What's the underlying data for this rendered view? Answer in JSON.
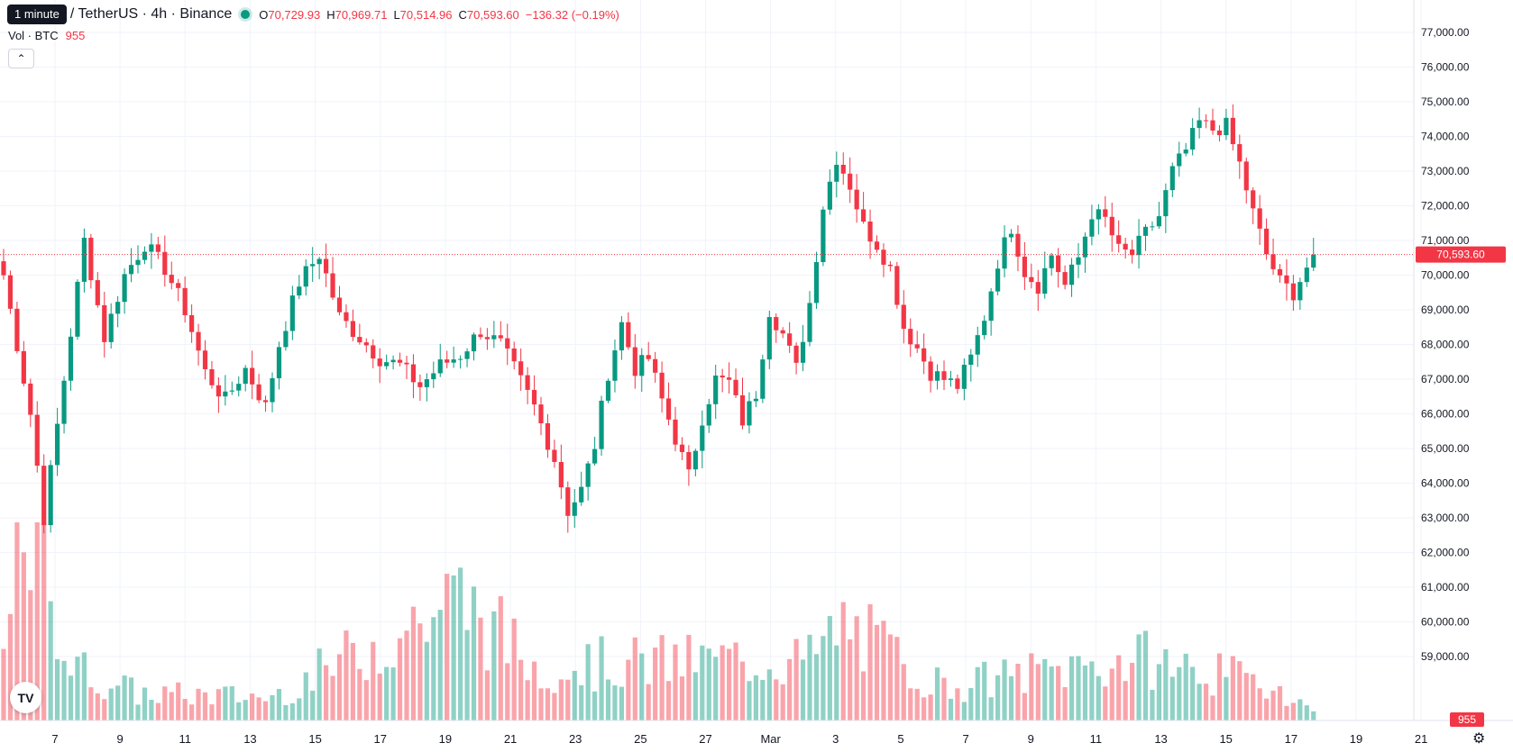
{
  "legend": {
    "interval_tooltip": "1 minute",
    "symbol": "/ TetherUS · 4h · Binance",
    "o_key": "O",
    "o_val": "70,729.93",
    "h_key": "H",
    "h_val": "70,969.71",
    "l_key": "L",
    "l_val": "70,514.96",
    "c_key": "C",
    "c_val": "70,593.60",
    "change": "−136.32 (−0.19%)"
  },
  "volume": {
    "label": "Vol · BTC",
    "value": "955"
  },
  "price_axis": {
    "ticks": [
      "77,000.00",
      "76,000.00",
      "75,000.00",
      "74,000.00",
      "73,000.00",
      "72,000.00",
      "71,000.00",
      "70,000.00",
      "69,000.00",
      "68,000.00",
      "67,000.00",
      "66,000.00",
      "65,000.00",
      "64,000.00",
      "63,000.00",
      "62,000.00",
      "61,000.00",
      "60,000.00",
      "59,000.00"
    ],
    "last_price": "70,593.60",
    "volume_badge": "955"
  },
  "time_axis": [
    "7",
    "9",
    "11",
    "13",
    "15",
    "17",
    "19",
    "21",
    "23",
    "25",
    "27",
    "Mar",
    "3",
    "5",
    "7",
    "9",
    "11",
    "13",
    "15",
    "17",
    "19",
    "21"
  ],
  "colors": {
    "up": "#089981",
    "down": "#f23645",
    "grid": "#f0f3fa",
    "text": "#131722"
  },
  "icons": {
    "collapse": "chevron-up-icon",
    "logo": "tradingview-logo",
    "settings": "gear-icon"
  },
  "chart_data": {
    "type": "candlestick",
    "y_range": [
      58500,
      77500
    ],
    "keypoints": [
      [
        0,
        70000
      ],
      [
        2,
        68000
      ],
      [
        4,
        66000
      ],
      [
        6,
        63000
      ],
      [
        9,
        67000
      ],
      [
        12,
        71000
      ],
      [
        15,
        68200
      ],
      [
        18,
        70000
      ],
      [
        21,
        70900
      ],
      [
        24,
        70200
      ],
      [
        27,
        69000
      ],
      [
        30,
        67200
      ],
      [
        33,
        66400
      ],
      [
        36,
        67300
      ],
      [
        39,
        66200
      ],
      [
        41,
        68000
      ],
      [
        44,
        69800
      ],
      [
        47,
        70600
      ],
      [
        50,
        68800
      ],
      [
        53,
        68200
      ],
      [
        56,
        67600
      ],
      [
        59,
        67400
      ],
      [
        62,
        66800
      ],
      [
        65,
        67400
      ],
      [
        68,
        67700
      ],
      [
        71,
        68400
      ],
      [
        74,
        68000
      ],
      [
        76,
        67300
      ],
      [
        79,
        66200
      ],
      [
        82,
        64700
      ],
      [
        84,
        63200
      ],
      [
        86,
        63800
      ],
      [
        88,
        65100
      ],
      [
        90,
        67200
      ],
      [
        92,
        68600
      ],
      [
        94,
        67300
      ],
      [
        96,
        67600
      ],
      [
        98,
        66400
      ],
      [
        100,
        65300
      ],
      [
        102,
        64200
      ],
      [
        104,
        65900
      ],
      [
        106,
        67000
      ],
      [
        108,
        66900
      ],
      [
        110,
        65800
      ],
      [
        112,
        66600
      ],
      [
        114,
        69000
      ],
      [
        116,
        68300
      ],
      [
        118,
        67300
      ],
      [
        120,
        69200
      ],
      [
        122,
        72000
      ],
      [
        124,
        73400
      ],
      [
        126,
        72600
      ],
      [
        128,
        71400
      ],
      [
        130,
        70900
      ],
      [
        132,
        70200
      ],
      [
        134,
        68500
      ],
      [
        136,
        67900
      ],
      [
        138,
        67200
      ],
      [
        140,
        67000
      ],
      [
        142,
        66800
      ],
      [
        144,
        67600
      ],
      [
        146,
        68800
      ],
      [
        148,
        70400
      ],
      [
        150,
        71400
      ],
      [
        152,
        70100
      ],
      [
        154,
        69700
      ],
      [
        156,
        70600
      ],
      [
        158,
        69700
      ],
      [
        160,
        70500
      ],
      [
        162,
        71800
      ],
      [
        164,
        71600
      ],
      [
        166,
        70700
      ],
      [
        168,
        70600
      ],
      [
        170,
        71200
      ],
      [
        172,
        71700
      ],
      [
        174,
        73000
      ],
      [
        176,
        73600
      ],
      [
        178,
        74400
      ],
      [
        180,
        74200
      ],
      [
        182,
        74300
      ],
      [
        184,
        73200
      ],
      [
        186,
        71800
      ],
      [
        188,
        70600
      ],
      [
        190,
        69800
      ],
      [
        192,
        69500
      ],
      [
        195,
        70600
      ]
    ],
    "volume_keypoints": [
      [
        0,
        900
      ],
      [
        3,
        2800
      ],
      [
        6,
        2300
      ],
      [
        10,
        800
      ],
      [
        20,
        400
      ],
      [
        40,
        350
      ],
      [
        68,
        1800
      ],
      [
        79,
        800
      ],
      [
        110,
        900
      ],
      [
        120,
        900
      ],
      [
        125,
        1400
      ],
      [
        140,
        500
      ],
      [
        160,
        800
      ],
      [
        170,
        900
      ],
      [
        180,
        700
      ],
      [
        190,
        500
      ],
      [
        195,
        120
      ]
    ]
  }
}
